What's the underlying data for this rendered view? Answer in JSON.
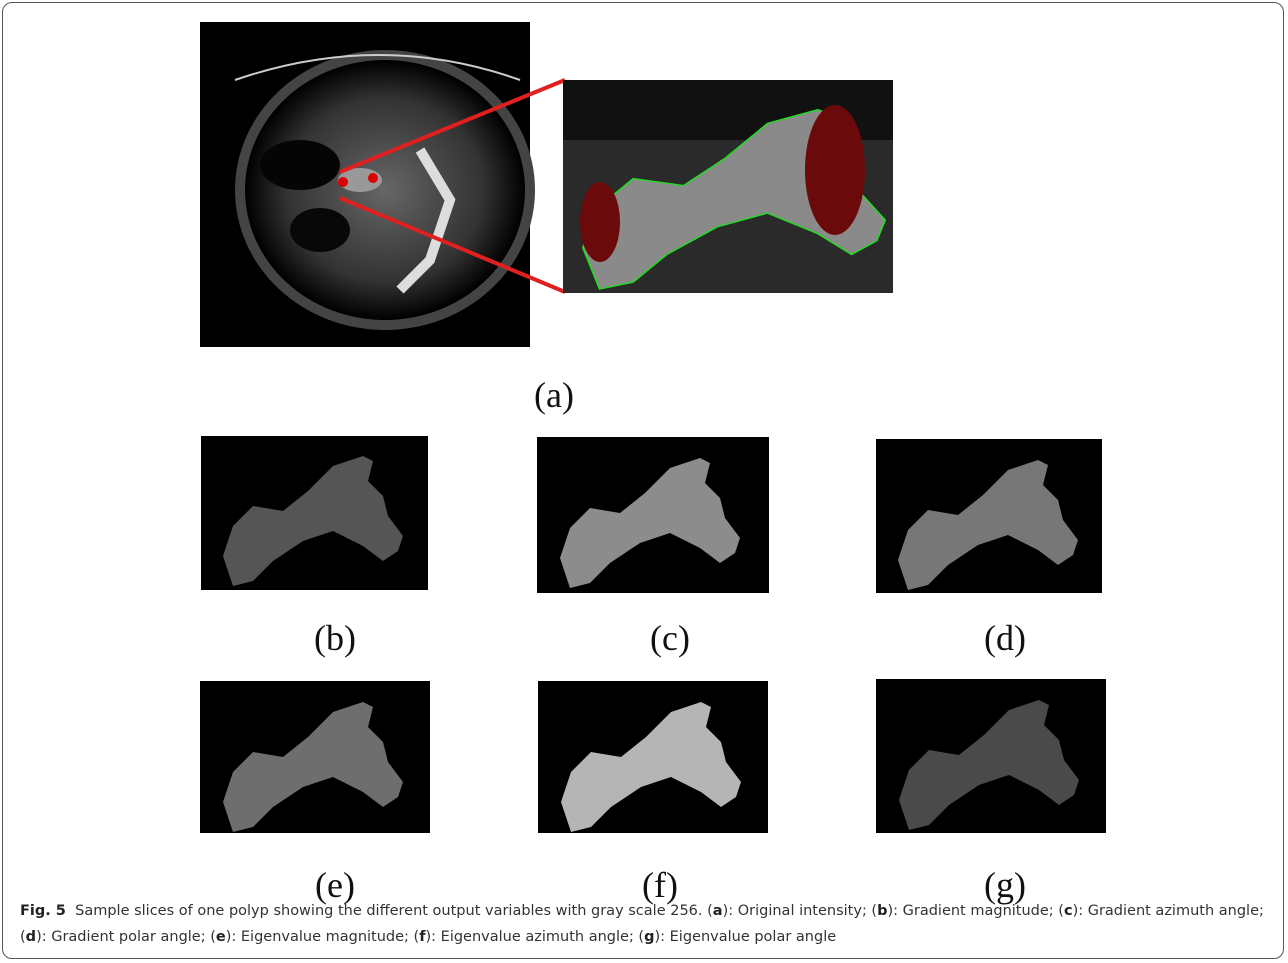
{
  "figure": {
    "panels": [
      {
        "label": "(a)"
      },
      {
        "label": "(b)"
      },
      {
        "label": "(c)"
      },
      {
        "label": "(d)"
      },
      {
        "label": "(e)"
      },
      {
        "label": "(f)"
      },
      {
        "label": "(g)"
      }
    ],
    "caption": {
      "label": "Fig. 5",
      "segments": [
        {
          "text": "Sample slices of one polyp showing the different output variables with gray scale 256. (",
          "bold": false
        },
        {
          "text": "a",
          "bold": true
        },
        {
          "text": "): Original intensity; (",
          "bold": false
        },
        {
          "text": "b",
          "bold": true
        },
        {
          "text": "): Gradient magnitude; (",
          "bold": false
        },
        {
          "text": "c",
          "bold": true
        },
        {
          "text": "): Gradient azimuth angle; (",
          "bold": false
        },
        {
          "text": "d",
          "bold": true
        },
        {
          "text": "): Gradient polar angle; (",
          "bold": false
        },
        {
          "text": "e",
          "bold": true
        },
        {
          "text": "): Eigenvalue magnitude; (",
          "bold": false
        },
        {
          "text": "f",
          "bold": true
        },
        {
          "text": "): Eigenvalue azimuth angle; (",
          "bold": false
        },
        {
          "text": "g",
          "bold": true
        },
        {
          "text": "): Eigenvalue polar angle",
          "bold": false
        }
      ]
    }
  }
}
